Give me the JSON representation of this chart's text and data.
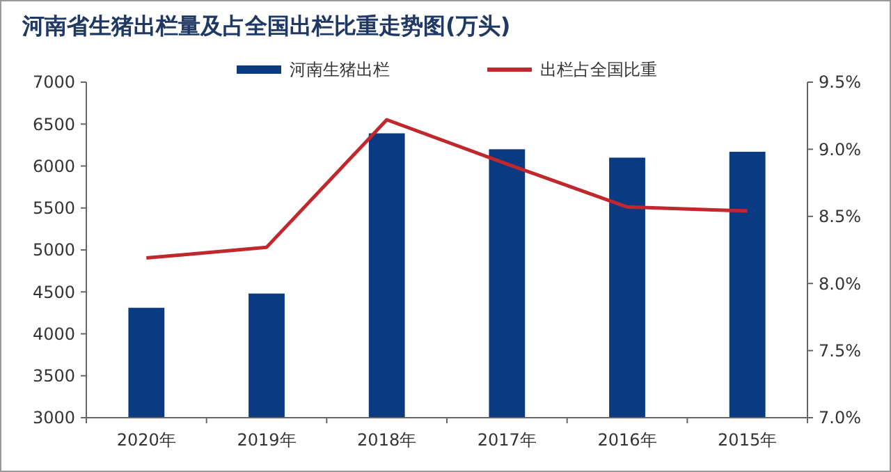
{
  "chart_data": {
    "type": "bar",
    "title": "河南省生猪出栏量及占全国出栏比重走势图(万头)",
    "categories": [
      "2020年",
      "2019年",
      "2018年",
      "2017年",
      "2016年",
      "2015年"
    ],
    "series": [
      {
        "name": "河南生猪出栏",
        "color": "#0a3a82",
        "values": [
          4310,
          4480,
          6390,
          6200,
          6100,
          6170
        ]
      },
      {
        "name": "出栏占全国比重",
        "type": "line",
        "axis": "y2",
        "color": "#c0282d",
        "values": [
          8.19,
          8.27,
          9.22,
          8.89,
          8.57,
          8.54
        ]
      }
    ],
    "ylim": [
      3000,
      7000
    ],
    "yticks": [
      3000,
      3500,
      4000,
      4500,
      5000,
      5500,
      6000,
      6500,
      7000
    ],
    "y2lim": [
      7.0,
      9.5
    ],
    "y2ticks": [
      {
        "value": 7.0,
        "label": "7.0%"
      },
      {
        "value": 7.5,
        "label": "7.5%"
      },
      {
        "value": 8.0,
        "label": "8.0%"
      },
      {
        "value": 8.5,
        "label": "8.5%"
      },
      {
        "value": 9.0,
        "label": "9.0%"
      },
      {
        "value": 9.5,
        "label": "9.5%"
      }
    ],
    "legend": "top",
    "grid": false
  }
}
